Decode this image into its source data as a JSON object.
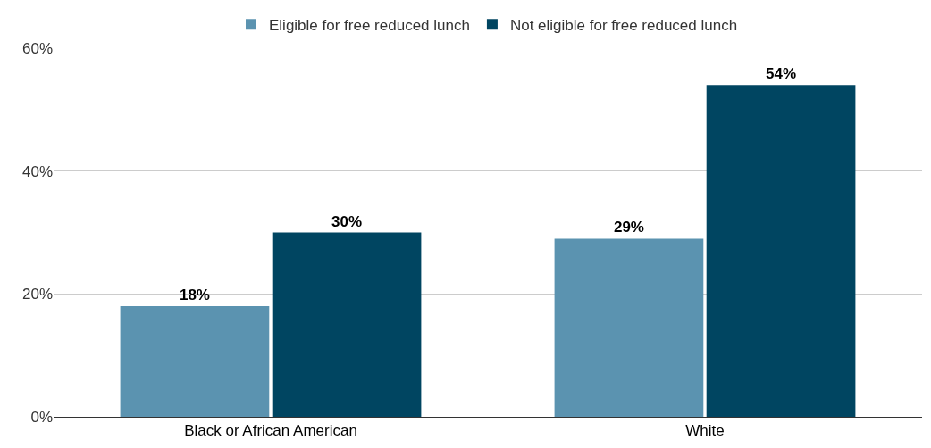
{
  "chart_data": {
    "type": "bar",
    "categories": [
      "Black or African American",
      "White"
    ],
    "series": [
      {
        "name": "Eligible for free reduced lunch",
        "color": "#5b93b0",
        "values": [
          18,
          29
        ],
        "value_labels": [
          "18%",
          "29%"
        ]
      },
      {
        "name": "Not eligible for free reduced lunch",
        "color": "#004561",
        "values": [
          30,
          54
        ],
        "value_labels": [
          "30%",
          "54%"
        ]
      }
    ],
    "ylim": [
      0,
      60
    ],
    "yticks": [
      {
        "value": 0,
        "label": "0%"
      },
      {
        "value": 20,
        "label": "20%"
      },
      {
        "value": 40,
        "label": "40%"
      },
      {
        "value": 60,
        "label": "60%"
      }
    ],
    "grid": "y",
    "legend": "top"
  }
}
